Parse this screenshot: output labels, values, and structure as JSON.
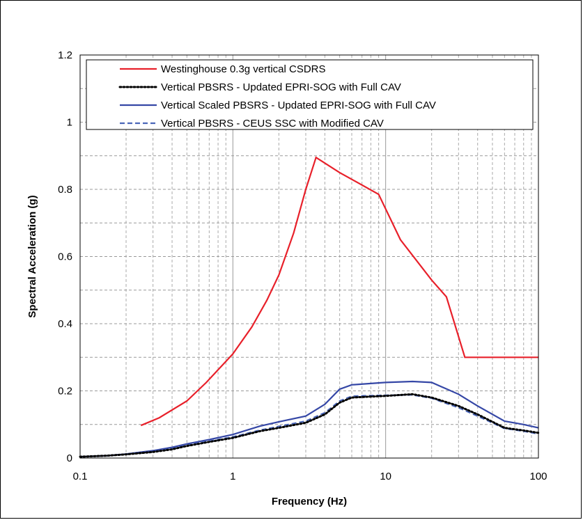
{
  "chart_data": {
    "type": "line",
    "xlabel": "Frequency (Hz)",
    "ylabel": "Spectral Acceleration (g)",
    "x_scale": "log",
    "xlim": [
      0.1,
      100
    ],
    "ylim": [
      0,
      1.2
    ],
    "x_ticks": [
      "0.1",
      "1",
      "10",
      "100"
    ],
    "y_ticks": [
      "0",
      "0.2",
      "0.4",
      "0.6",
      "0.8",
      "1",
      "1.2"
    ],
    "grid": true,
    "legend_position": "top",
    "series": [
      {
        "name": "Westinghouse 0.3g vertical CSDRS",
        "color": "#e8202a",
        "style": "solid",
        "points": [
          [
            0.25,
            0.097
          ],
          [
            0.33,
            0.12
          ],
          [
            0.5,
            0.17
          ],
          [
            0.67,
            0.225
          ],
          [
            1.0,
            0.31
          ],
          [
            1.33,
            0.39
          ],
          [
            1.67,
            0.47
          ],
          [
            2.0,
            0.545
          ],
          [
            2.5,
            0.67
          ],
          [
            3.0,
            0.8
          ],
          [
            3.5,
            0.895
          ],
          [
            5.0,
            0.85
          ],
          [
            9.0,
            0.785
          ],
          [
            12.5,
            0.65
          ],
          [
            20.0,
            0.53
          ],
          [
            25.0,
            0.48
          ],
          [
            33.0,
            0.3
          ],
          [
            100.0,
            0.3
          ]
        ]
      },
      {
        "name": "Vertical PBSRS - Updated EPRI-SOG with Full CAV",
        "color": "#000000",
        "style": "dotted",
        "points": [
          [
            0.1,
            0.004
          ],
          [
            0.15,
            0.007
          ],
          [
            0.2,
            0.011
          ],
          [
            0.3,
            0.018
          ],
          [
            0.4,
            0.026
          ],
          [
            0.5,
            0.036
          ],
          [
            0.7,
            0.048
          ],
          [
            1.0,
            0.06
          ],
          [
            1.5,
            0.08
          ],
          [
            2.0,
            0.09
          ],
          [
            3.0,
            0.105
          ],
          [
            4.0,
            0.13
          ],
          [
            5.0,
            0.165
          ],
          [
            6.0,
            0.18
          ],
          [
            8.0,
            0.183
          ],
          [
            10.0,
            0.185
          ],
          [
            15.0,
            0.19
          ],
          [
            20.0,
            0.18
          ],
          [
            30.0,
            0.155
          ],
          [
            40.0,
            0.13
          ],
          [
            60.0,
            0.09
          ],
          [
            80.0,
            0.082
          ],
          [
            100.0,
            0.075
          ]
        ]
      },
      {
        "name": "Vertical Scaled PBSRS - Updated EPRI-SOG with Full CAV",
        "color": "#3547a6",
        "style": "solid",
        "points": [
          [
            0.1,
            0.004
          ],
          [
            0.15,
            0.007
          ],
          [
            0.2,
            0.012
          ],
          [
            0.3,
            0.022
          ],
          [
            0.4,
            0.032
          ],
          [
            0.5,
            0.042
          ],
          [
            0.7,
            0.055
          ],
          [
            1.0,
            0.07
          ],
          [
            1.5,
            0.095
          ],
          [
            2.0,
            0.108
          ],
          [
            3.0,
            0.125
          ],
          [
            4.0,
            0.16
          ],
          [
            5.0,
            0.205
          ],
          [
            6.0,
            0.218
          ],
          [
            8.0,
            0.222
          ],
          [
            10.0,
            0.225
          ],
          [
            15.0,
            0.228
          ],
          [
            20.0,
            0.225
          ],
          [
            30.0,
            0.19
          ],
          [
            40.0,
            0.155
          ],
          [
            60.0,
            0.11
          ],
          [
            80.0,
            0.1
          ],
          [
            100.0,
            0.09
          ]
        ]
      },
      {
        "name": "Vertical PBSRS - CEUS SSC with Modified CAV",
        "color": "#4a66b8",
        "style": "dashed",
        "points": [
          [
            0.1,
            0.004
          ],
          [
            0.15,
            0.007
          ],
          [
            0.2,
            0.011
          ],
          [
            0.3,
            0.019
          ],
          [
            0.4,
            0.028
          ],
          [
            0.5,
            0.038
          ],
          [
            0.7,
            0.05
          ],
          [
            1.0,
            0.063
          ],
          [
            1.5,
            0.083
          ],
          [
            2.0,
            0.094
          ],
          [
            3.0,
            0.11
          ],
          [
            4.0,
            0.135
          ],
          [
            5.0,
            0.17
          ],
          [
            6.0,
            0.184
          ],
          [
            8.0,
            0.186
          ],
          [
            10.0,
            0.187
          ],
          [
            15.0,
            0.188
          ],
          [
            20.0,
            0.178
          ],
          [
            30.0,
            0.15
          ],
          [
            40.0,
            0.125
          ],
          [
            60.0,
            0.088
          ],
          [
            80.0,
            0.08
          ],
          [
            100.0,
            0.072
          ]
        ]
      }
    ]
  }
}
